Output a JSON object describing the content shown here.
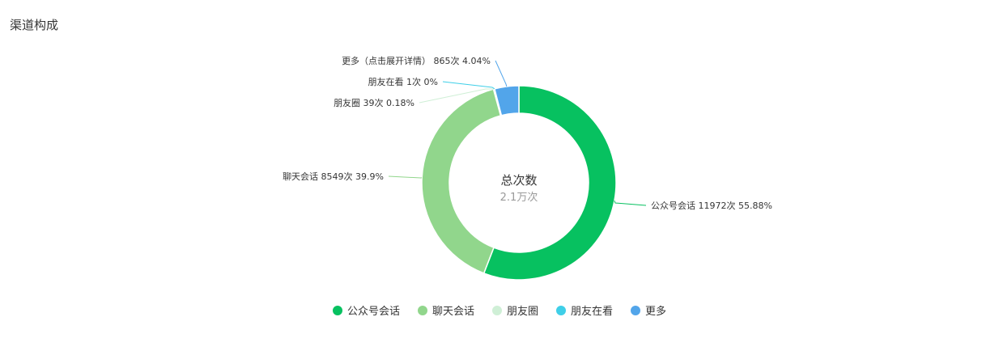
{
  "panel": {
    "title": "渠道构成"
  },
  "chart_data": {
    "type": "pie",
    "variant": "donut",
    "center": {
      "title": "总次数",
      "value": "2.1万次"
    },
    "unit": "次",
    "slices": [
      {
        "name": "公众号会话",
        "value": 11972,
        "percent_label": "55.88%",
        "color": "#07c160"
      },
      {
        "name": "聊天会话",
        "value": 8549,
        "percent_label": "39.9%",
        "color": "#91d68c"
      },
      {
        "name": "朋友圈",
        "value": 39,
        "percent_label": "0.18%",
        "color": "#cfefd6"
      },
      {
        "name": "朋友在看",
        "value": 1,
        "percent_label": "0%",
        "color": "#3fcfe8"
      },
      {
        "name": "更多（点击展开详情）",
        "legend_name": "更多",
        "value": 865,
        "percent_label": "4.04%",
        "color": "#52a5ea"
      }
    ],
    "legend_position": "bottom-center"
  }
}
